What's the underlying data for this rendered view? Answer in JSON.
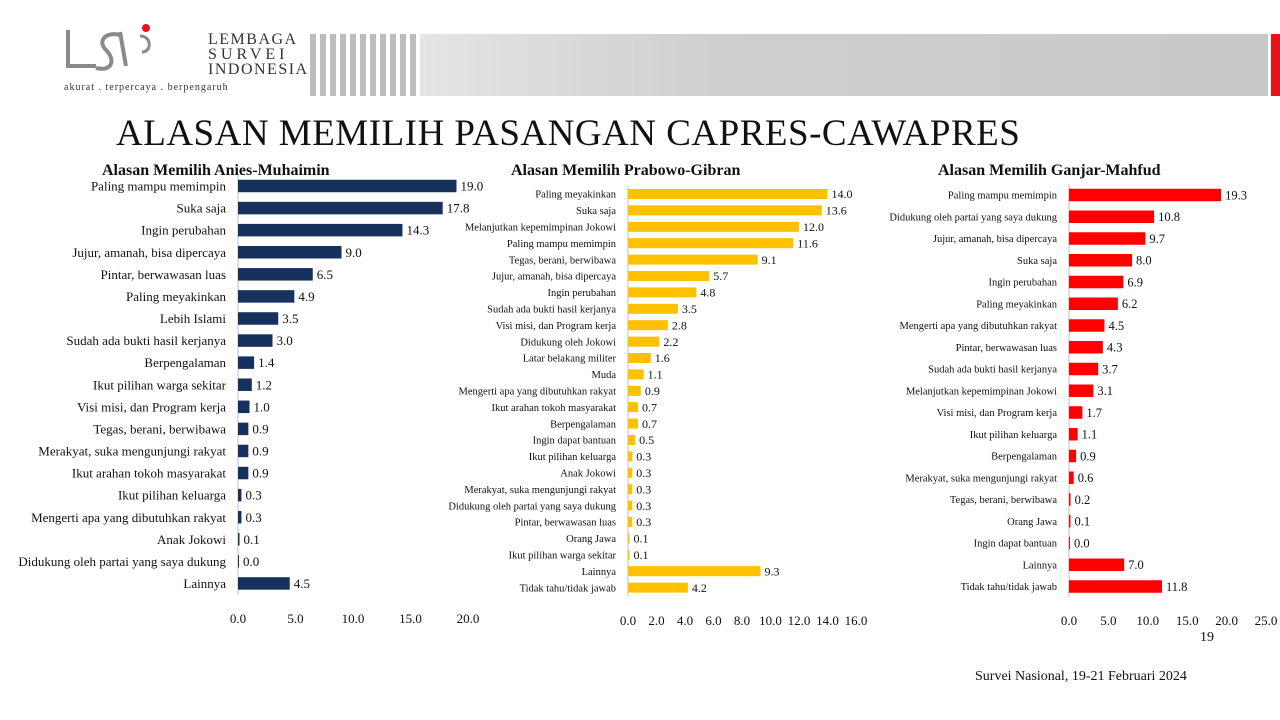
{
  "header": {
    "logo_text_line1": "LEMBAGA",
    "logo_text_line2": "SURVEI",
    "logo_text_line3": "INDONESIA",
    "tagline": "akurat . terpercaya . berpengaruh",
    "title": "ALASAN MEMILIH PASANGAN CAPRES-CAWAPRES"
  },
  "footer": {
    "page_number": "19",
    "survey_label": "Survei  Nasional,  19-21 Februari  2024"
  },
  "colors": {
    "navy": "#16325c",
    "gold": "#ffc000",
    "red": "#ff0000",
    "accent_red": "#e8121b"
  },
  "chart_data": [
    {
      "type": "bar",
      "orientation": "horizontal",
      "title": "Alasan Memilih Anies-Muhaimin",
      "color": "#16325c",
      "categories": [
        "Paling mampu memimpin",
        "Suka saja",
        "Ingin perubahan",
        "Jujur, amanah, bisa dipercaya",
        "Pintar, berwawasan luas",
        "Paling meyakinkan",
        "Lebih Islami",
        "Sudah ada bukti hasil kerjanya",
        "Berpengalaman",
        "Ikut pilihan warga sekitar",
        "Visi misi, dan Program kerja",
        "Tegas, berani, berwibawa",
        "Merakyat, suka mengunjungi rakyat",
        "Ikut arahan tokoh masyarakat",
        "Ikut pilihan keluarga",
        "Mengerti apa yang dibutuhkan rakyat",
        "Anak Jokowi",
        "Didukung oleh partai yang saya dukung",
        "Lainnya"
      ],
      "values": [
        19.0,
        17.8,
        14.3,
        9.0,
        6.5,
        4.9,
        3.5,
        3.0,
        1.4,
        1.2,
        1.0,
        0.9,
        0.9,
        0.9,
        0.3,
        0.3,
        0.1,
        0.0,
        4.5
      ],
      "xlim": [
        0,
        20
      ],
      "ticks": [
        "0.0",
        "5.0",
        "10.0",
        "15.0",
        "20.0"
      ]
    },
    {
      "type": "bar",
      "orientation": "horizontal",
      "title": "Alasan Memilih Prabowo-Gibran",
      "color": "#ffc000",
      "categories": [
        "Paling meyakinkan",
        "Suka saja",
        "Melanjutkan kepemimpinan Jokowi",
        "Paling mampu memimpin",
        "Tegas, berani, berwibawa",
        "Jujur, amanah, bisa dipercaya",
        "Ingin perubahan",
        "Sudah ada bukti hasil kerjanya",
        "Visi misi, dan Program kerja",
        "Didukung oleh Jokowi",
        "Latar belakang militer",
        "Muda",
        "Mengerti apa yang dibutuhkan rakyat",
        "Ikut arahan tokoh masyarakat",
        "Berpengalaman",
        "Ingin dapat bantuan",
        "Ikut pilihan keluarga",
        "Anak Jokowi",
        "Merakyat, suka mengunjungi rakyat",
        "Didukung oleh partai yang saya dukung",
        "Pintar, berwawasan luas",
        "Orang Jawa",
        "Ikut pilihan warga sekitar",
        "Lainnya",
        "Tidak tahu/tidak jawab"
      ],
      "values": [
        14.0,
        13.6,
        12.0,
        11.6,
        9.1,
        5.7,
        4.8,
        3.5,
        2.8,
        2.2,
        1.6,
        1.1,
        0.9,
        0.7,
        0.7,
        0.5,
        0.3,
        0.3,
        0.3,
        0.3,
        0.3,
        0.1,
        0.1,
        9.3,
        4.2
      ],
      "xlim": [
        0,
        16
      ],
      "ticks": [
        "0.0",
        "2.0",
        "4.0",
        "6.0",
        "8.0",
        "10.0",
        "12.0",
        "14.0",
        "16.0"
      ]
    },
    {
      "type": "bar",
      "orientation": "horizontal",
      "title": "Alasan Memilih Ganjar-Mahfud",
      "color": "#ff0000",
      "categories": [
        "Paling mampu memimpin",
        "Didukung oleh partai yang saya dukung",
        "Jujur, amanah, bisa dipercaya",
        "Suka saja",
        "Ingin perubahan",
        "Paling meyakinkan",
        "Mengerti apa yang dibutuhkan rakyat",
        "Pintar, berwawasan luas",
        "Sudah ada bukti hasil kerjanya",
        "Melanjutkan kepemimpinan Jokowi",
        "Visi misi, dan Program kerja",
        "Ikut pilihan keluarga",
        "Berpengalaman",
        "Merakyat, suka mengunjungi rakyat",
        "Tegas, berani, berwibawa",
        "Orang Jawa",
        "Ingin dapat bantuan",
        "Lainnya",
        "Tidak tahu/tidak jawab"
      ],
      "values": [
        19.3,
        10.8,
        9.7,
        8.0,
        6.9,
        6.2,
        4.5,
        4.3,
        3.7,
        3.1,
        1.7,
        1.1,
        0.9,
        0.6,
        0.2,
        0.1,
        0.0,
        7.0,
        11.8
      ],
      "xlim": [
        0,
        25
      ],
      "ticks": [
        "0.0",
        "5.0",
        "10.0",
        "15.0",
        "20.0",
        "25.0"
      ]
    }
  ]
}
